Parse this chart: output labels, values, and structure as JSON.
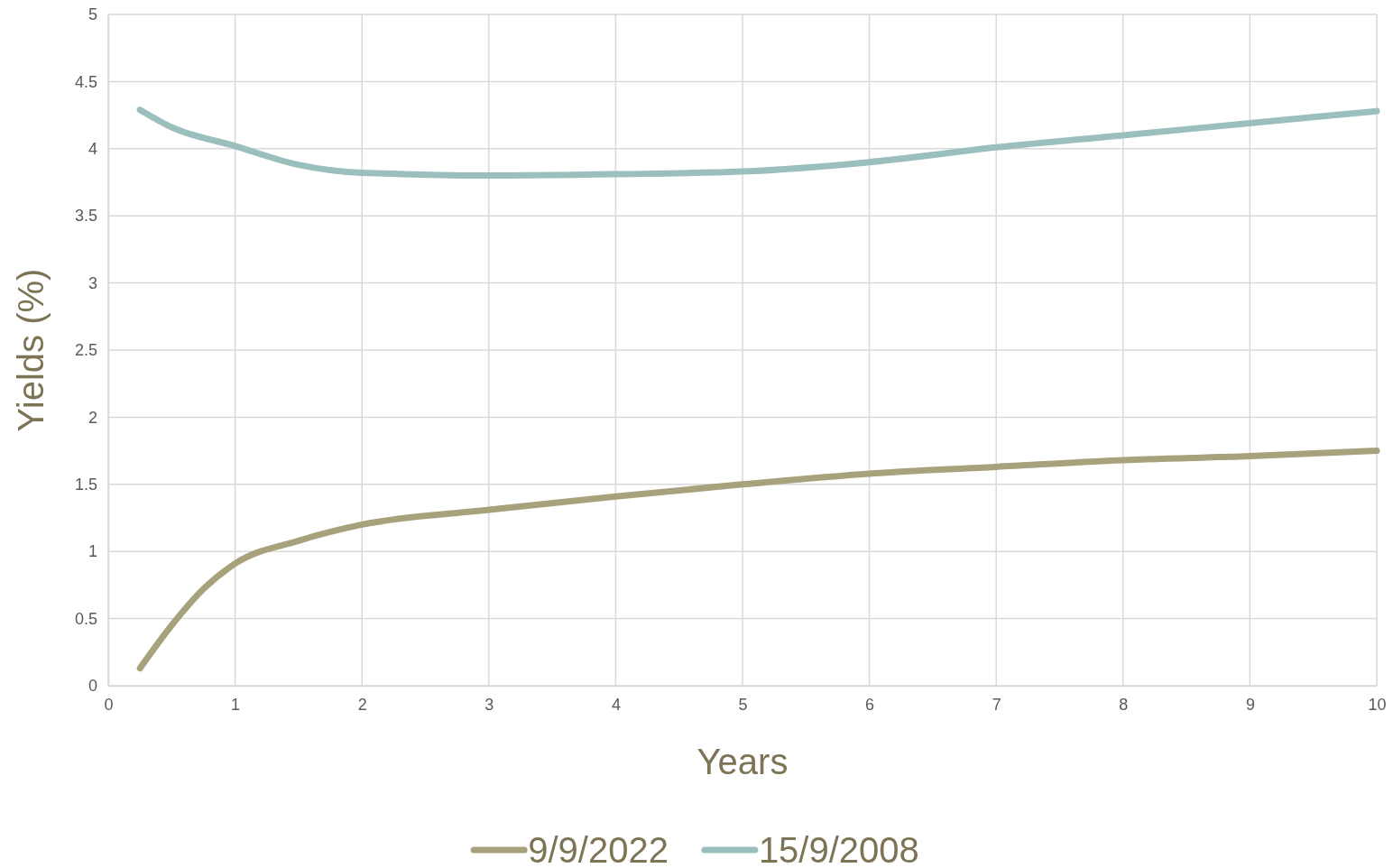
{
  "chart_data": {
    "type": "line",
    "xlabel": "Years",
    "ylabel": "Yields (%)",
    "xlim": [
      0,
      10
    ],
    "xticks": [
      0,
      1,
      2,
      3,
      4,
      5,
      6,
      7,
      8,
      9,
      10
    ],
    "ylim": [
      0,
      5
    ],
    "yticks": [
      0,
      0.5,
      1,
      1.5,
      2,
      2.5,
      3,
      3.5,
      4,
      4.5,
      5
    ],
    "grid": true,
    "legend": "bottom",
    "line_style": "solid",
    "series": [
      {
        "name": "9/9/2022",
        "color": "#a8a27c",
        "x": [
          0.25,
          0.5,
          0.75,
          1,
          1.5,
          2,
          3,
          4,
          5,
          6,
          7,
          8,
          9,
          10
        ],
        "values": [
          0.13,
          0.45,
          0.72,
          0.91,
          1.08,
          1.2,
          1.31,
          1.41,
          1.5,
          1.58,
          1.63,
          1.68,
          1.71,
          1.75
        ]
      },
      {
        "name": "15/9/2008",
        "color": "#9bbfbc",
        "x": [
          0.25,
          0.5,
          1,
          1.5,
          2,
          3,
          4,
          5,
          6,
          7,
          8,
          9,
          10
        ],
        "values": [
          4.29,
          4.16,
          4.02,
          3.88,
          3.82,
          3.8,
          3.81,
          3.83,
          3.9,
          4.01,
          4.1,
          4.19,
          4.28
        ]
      }
    ]
  }
}
